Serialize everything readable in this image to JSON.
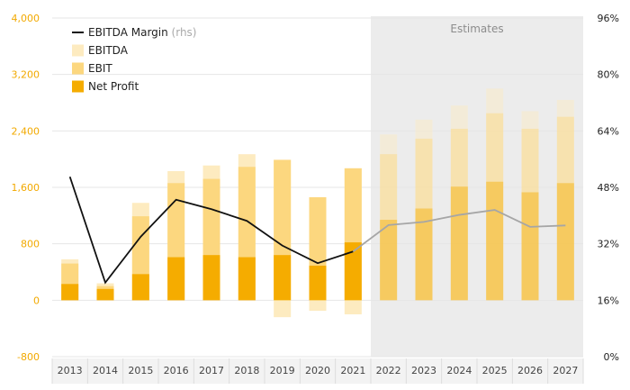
{
  "chart_data": {
    "type": "bar",
    "categories": [
      "2013",
      "2014",
      "2015",
      "2016",
      "2017",
      "2018",
      "2019",
      "2020",
      "2021",
      "2022",
      "2023",
      "2024",
      "2025",
      "2026",
      "2027"
    ],
    "estimate_start_index": 9,
    "estimates_label": "Estimates",
    "series": [
      {
        "name": "EBITDA",
        "values": [
          580,
          240,
          1380,
          1830,
          1910,
          2070,
          1990,
          1460,
          1870,
          2350,
          2560,
          2760,
          3000,
          2680,
          2840
        ],
        "negative_values": [
          0,
          0,
          0,
          0,
          0,
          0,
          -240,
          -150,
          -200,
          0,
          0,
          0,
          0,
          0,
          0
        ]
      },
      {
        "name": "EBIT",
        "values": [
          520,
          200,
          1190,
          1660,
          1720,
          1890,
          1990,
          1460,
          1870,
          2070,
          2290,
          2430,
          2650,
          2430,
          2600
        ],
        "negative_values": [
          0,
          0,
          0,
          0,
          0,
          0,
          -240,
          -150,
          -200,
          0,
          0,
          0,
          0,
          0,
          0
        ]
      },
      {
        "name": "Net Profit",
        "values": [
          230,
          160,
          370,
          610,
          640,
          610,
          640,
          490,
          820,
          1140,
          1300,
          1610,
          1680,
          1530,
          1660
        ]
      },
      {
        "name": "EBITDA Margin (rhs)",
        "axis": "right",
        "values": [
          51.0,
          21.0,
          34.0,
          44.5,
          41.8,
          38.5,
          31.5,
          26.5,
          29.8,
          37.3,
          38.2,
          40.2,
          41.6,
          36.8,
          37.2
        ]
      }
    ],
    "legend": [
      {
        "label": "EBITDA Margin",
        "sub": "(rhs)",
        "kind": "line",
        "color": "#111111"
      },
      {
        "label": "EBITDA",
        "sub": "",
        "kind": "box",
        "color": "#fdebc0"
      },
      {
        "label": "EBIT",
        "sub": "",
        "kind": "box",
        "color": "#fcd77f"
      },
      {
        "label": "Net Profit",
        "sub": "",
        "kind": "box",
        "color": "#f5ac00"
      }
    ],
    "y_left": {
      "min": -800,
      "max": 4000,
      "ticks": [
        "4,000",
        "3,200",
        "2,400",
        "1,600",
        "800",
        "0",
        "-800"
      ],
      "tick_values": [
        4000,
        3200,
        2400,
        1600,
        800,
        0,
        -800
      ]
    },
    "y_right": {
      "min": 0,
      "max": 96,
      "ticks": [
        "96%",
        "80%",
        "64%",
        "48%",
        "32%",
        "16%",
        "0%"
      ],
      "tick_values": [
        96,
        80,
        64,
        48,
        32,
        16,
        0
      ]
    },
    "grid": true,
    "legend_position": "top-left"
  },
  "colors": {
    "ebitda": "#fdebc0",
    "ebit": "#fcd77f",
    "net_profit": "#f5ac00",
    "margin_line": "#111111",
    "margin_line_estimate": "#a6a6a6",
    "estimate_shade": "#ececec",
    "left_axis_text": "#f2a900"
  }
}
